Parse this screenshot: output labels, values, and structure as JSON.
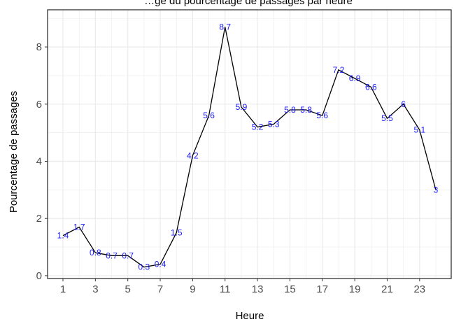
{
  "chart_data": {
    "type": "line",
    "title": "",
    "title_partial": "…ge du pourcentage de passages par heure",
    "xlabel": "Heure",
    "ylabel": "Pourcentage de passages",
    "x": [
      1,
      2,
      3,
      4,
      5,
      6,
      7,
      8,
      9,
      10,
      11,
      12,
      13,
      14,
      15,
      16,
      17,
      18,
      19,
      20,
      21,
      22,
      23,
      24
    ],
    "series": [
      {
        "values": [
          1.4,
          1.7,
          0.8,
          0.7,
          0.7,
          0.3,
          0.4,
          1.5,
          4.2,
          5.6,
          8.7,
          5.9,
          5.2,
          5.3,
          5.8,
          5.8,
          5.6,
          7.2,
          6.9,
          6.6,
          5.5,
          6,
          5.1,
          3
        ],
        "labels": [
          "1.4",
          "1.7",
          "0.8",
          "0.7",
          "0.7",
          "0.3",
          "0.4",
          "1.5",
          "4.2",
          "5.6",
          "8.7",
          "5.9",
          "5.2",
          "5.3",
          "5.8",
          "5.8",
          "5.6",
          "7.2",
          "6.9",
          "6.6",
          "5.5",
          "6",
          "5.1",
          "3"
        ]
      }
    ],
    "xticks": [
      "1",
      "3",
      "5",
      "7",
      "9",
      "11",
      "13",
      "15",
      "17",
      "19",
      "21",
      "23"
    ],
    "yticks": [
      "0",
      "2",
      "4",
      "6",
      "8"
    ],
    "xlim": [
      0.05,
      24.95
    ],
    "ylim": [
      -0.1,
      9.3
    ],
    "grid": true,
    "legend": "none",
    "colors": {
      "line": "#000000",
      "label": "#1a1aff",
      "grid": "#ebebeb",
      "panel_border": "#333333"
    }
  }
}
